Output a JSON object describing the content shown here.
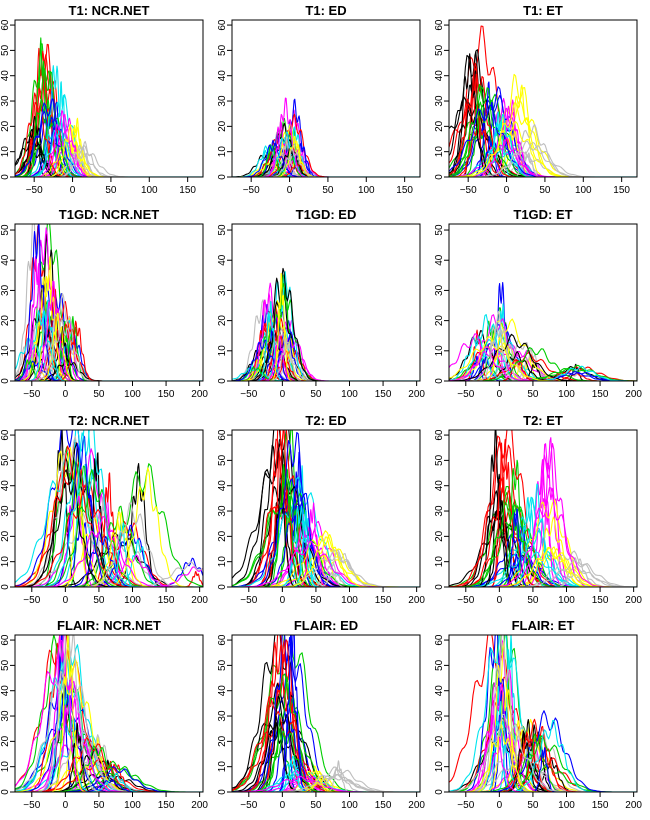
{
  "figure": {
    "palette": [
      "#000000",
      "#ff0000",
      "#00cd00",
      "#0000ff",
      "#00e5ee",
      "#ff00ff",
      "#ffff00",
      "#bebebe"
    ]
  },
  "chart_data": [
    {
      "type": "line",
      "title": "T1: NCR.NET",
      "xlabel": "",
      "ylabel": "",
      "xlim": [
        -75,
        170
      ],
      "ylim": [
        0,
        62
      ],
      "x_ticks": [
        -50,
        0,
        50,
        100,
        150
      ],
      "y_ticks": [
        0,
        10,
        20,
        30,
        40,
        50,
        60
      ],
      "series_summary": {
        "count": 48,
        "x_range": [
          -55,
          45
        ],
        "peak_x": [
          -50,
          -40,
          -35,
          -30,
          -20,
          -10,
          0,
          10
        ],
        "peak_y": [
          22,
          56,
          48,
          35,
          43,
          28,
          22,
          12
        ],
        "baseline_x": [
          -75,
          170
        ]
      }
    },
    {
      "type": "line",
      "title": "T1: ED",
      "xlabel": "",
      "ylabel": "",
      "xlim": [
        -75,
        170
      ],
      "ylim": [
        0,
        62
      ],
      "x_ticks": [
        -50,
        0,
        50,
        100,
        150
      ],
      "y_ticks": [
        0,
        10,
        20,
        30,
        40,
        50,
        60
      ],
      "series_summary": {
        "count": 48,
        "x_range": [
          -40,
          30
        ],
        "peak_x": [
          -25,
          -15,
          -5,
          0,
          5,
          10
        ],
        "peak_y": [
          12,
          23,
          20,
          30,
          18,
          13
        ],
        "baseline_x": [
          -75,
          170
        ]
      }
    },
    {
      "type": "line",
      "title": "T1: ET",
      "xlabel": "",
      "ylabel": "",
      "xlim": [
        -75,
        170
      ],
      "ylim": [
        0,
        62
      ],
      "x_ticks": [
        -50,
        0,
        50,
        100,
        150
      ],
      "y_ticks": [
        0,
        10,
        20,
        30,
        40,
        50,
        60
      ],
      "series_summary": {
        "count": 48,
        "x_range": [
          -60,
          100
        ],
        "peak_x": [
          -45,
          -40,
          -30,
          -20,
          -10,
          0,
          15,
          30
        ],
        "peak_y": [
          62,
          58,
          42,
          35,
          23,
          30,
          38,
          20
        ],
        "baseline_x": [
          -75,
          170
        ]
      }
    },
    {
      "type": "line",
      "title": "T1GD: NCR.NET",
      "xlabel": "",
      "ylabel": "",
      "xlim": [
        -75,
        205
      ],
      "ylim": [
        0,
        52
      ],
      "x_ticks": [
        -50,
        0,
        50,
        100,
        150,
        200
      ],
      "y_ticks": [
        0,
        10,
        20,
        30,
        40,
        50
      ],
      "series_summary": {
        "count": 48,
        "x_range": [
          -60,
          40
        ],
        "peak_x": [
          -50,
          -40,
          -30,
          -20,
          -10,
          0,
          10
        ],
        "peak_y": [
          14,
          49,
          47,
          38,
          31,
          18,
          20
        ],
        "baseline_x": [
          -75,
          205
        ]
      }
    },
    {
      "type": "line",
      "title": "T1GD: ED",
      "xlabel": "",
      "ylabel": "",
      "xlim": [
        -75,
        205
      ],
      "ylim": [
        0,
        52
      ],
      "x_ticks": [
        -50,
        0,
        50,
        100,
        150,
        200
      ],
      "y_ticks": [
        0,
        10,
        20,
        30,
        40,
        50
      ],
      "series_summary": {
        "count": 48,
        "x_range": [
          -50,
          40
        ],
        "peak_x": [
          -40,
          -25,
          -15,
          -5,
          0,
          10
        ],
        "peak_y": [
          11,
          29,
          25,
          21,
          37,
          18
        ],
        "baseline_x": [
          -75,
          205
        ]
      }
    },
    {
      "type": "line",
      "title": "T1GD: ET",
      "xlabel": "",
      "ylabel": "",
      "xlim": [
        -75,
        205
      ],
      "ylim": [
        0,
        52
      ],
      "x_ticks": [
        -50,
        0,
        50,
        100,
        150,
        200
      ],
      "y_ticks": [
        0,
        10,
        20,
        30,
        40,
        50
      ],
      "series_summary": {
        "count": 48,
        "x_range": [
          -40,
          160
        ],
        "peak_x": [
          -30,
          -15,
          0,
          5,
          15,
          30,
          50,
          110,
          120
        ],
        "peak_y": [
          18,
          20,
          31,
          30,
          15,
          13,
          10,
          5,
          5
        ],
        "baseline_x": [
          -75,
          205
        ]
      }
    },
    {
      "type": "line",
      "title": "T2: NCR.NET",
      "xlabel": "",
      "ylabel": "",
      "xlim": [
        -75,
        205
      ],
      "ylim": [
        0,
        62
      ],
      "x_ticks": [
        -50,
        0,
        50,
        100,
        150,
        200
      ],
      "y_ticks": [
        0,
        10,
        20,
        30,
        40,
        50,
        60
      ],
      "series_summary": {
        "count": 48,
        "x_range": [
          -10,
          205
        ],
        "peak_x": [
          0,
          10,
          20,
          30,
          40,
          60,
          80,
          100,
          115,
          190
        ],
        "peak_y": [
          62,
          62,
          62,
          55,
          62,
          40,
          35,
          32,
          44,
          15
        ],
        "baseline_x": [
          -75,
          205
        ]
      }
    },
    {
      "type": "line",
      "title": "T2: ED",
      "xlabel": "",
      "ylabel": "",
      "xlim": [
        -75,
        205
      ],
      "ylim": [
        0,
        62
      ],
      "x_ticks": [
        -50,
        0,
        50,
        100,
        150,
        200
      ],
      "y_ticks": [
        0,
        10,
        20,
        30,
        40,
        50,
        60
      ],
      "series_summary": {
        "count": 48,
        "x_range": [
          -10,
          200
        ],
        "peak_x": [
          -5,
          0,
          10,
          20,
          30,
          40,
          60,
          80
        ],
        "peak_y": [
          62,
          62,
          62,
          57,
          45,
          30,
          20,
          13
        ],
        "baseline_x": [
          -75,
          205
        ]
      }
    },
    {
      "type": "line",
      "title": "T2: ET",
      "xlabel": "",
      "ylabel": "",
      "xlim": [
        -75,
        205
      ],
      "ylim": [
        0,
        62
      ],
      "x_ticks": [
        -50,
        0,
        50,
        100,
        150,
        200
      ],
      "y_ticks": [
        0,
        10,
        20,
        30,
        40,
        50,
        60
      ],
      "series_summary": {
        "count": 48,
        "x_range": [
          -20,
          180
        ],
        "peak_x": [
          0,
          10,
          20,
          30,
          50,
          70,
          80,
          110
        ],
        "peak_y": [
          62,
          62,
          45,
          30,
          35,
          62,
          37,
          13
        ],
        "baseline_x": [
          -75,
          205
        ]
      }
    },
    {
      "type": "line",
      "title": "FLAIR: NCR.NET",
      "xlabel": "",
      "ylabel": "",
      "xlim": [
        -75,
        205
      ],
      "ylim": [
        0,
        62
      ],
      "x_ticks": [
        -50,
        0,
        50,
        100,
        150,
        200
      ],
      "y_ticks": [
        0,
        10,
        20,
        30,
        40,
        50,
        60
      ],
      "series_summary": {
        "count": 48,
        "x_range": [
          -40,
          180
        ],
        "peak_x": [
          -5,
          0,
          5,
          10,
          20,
          40,
          50,
          70,
          80
        ],
        "peak_y": [
          62,
          62,
          62,
          62,
          25,
          19,
          19,
          12,
          10
        ],
        "baseline_x": [
          -75,
          205
        ]
      }
    },
    {
      "type": "line",
      "title": "FLAIR: ED",
      "xlabel": "",
      "ylabel": "",
      "xlim": [
        -75,
        205
      ],
      "ylim": [
        0,
        62
      ],
      "x_ticks": [
        -50,
        0,
        50,
        100,
        150,
        200
      ],
      "y_ticks": [
        0,
        10,
        20,
        30,
        40,
        50,
        60
      ],
      "series_summary": {
        "count": 48,
        "x_range": [
          -20,
          180
        ],
        "peak_x": [
          -5,
          0,
          5,
          10,
          20,
          30,
          50,
          80
        ],
        "peak_y": [
          62,
          62,
          62,
          62,
          14,
          10,
          9,
          11
        ],
        "baseline_x": [
          -75,
          205
        ]
      }
    },
    {
      "type": "line",
      "title": "FLAIR: ET",
      "xlabel": "",
      "ylabel": "",
      "xlim": [
        -75,
        205
      ],
      "ylim": [
        0,
        62
      ],
      "x_ticks": [
        -50,
        0,
        50,
        100,
        150,
        200
      ],
      "y_ticks": [
        0,
        10,
        20,
        30,
        40,
        50,
        60
      ],
      "series_summary": {
        "count": 48,
        "x_range": [
          -20,
          180
        ],
        "peak_x": [
          -5,
          0,
          5,
          10,
          30,
          40,
          50,
          60,
          75
        ],
        "peak_y": [
          62,
          62,
          62,
          62,
          27,
          25,
          29,
          27,
          28
        ],
        "baseline_x": [
          -75,
          205
        ]
      }
    }
  ]
}
